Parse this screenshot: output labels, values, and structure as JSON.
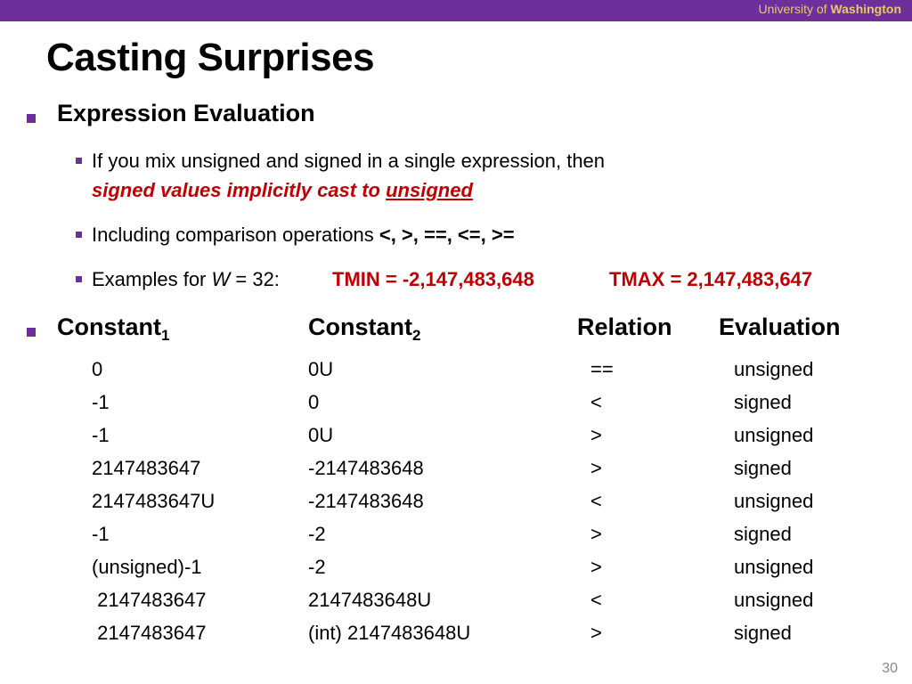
{
  "header": {
    "org_prefix": "University of",
    "org_name": "Washington"
  },
  "title": "Casting Surprises",
  "bullets": {
    "expr_eval": "Expression Evaluation",
    "mix_line1": "If you mix unsigned and signed in a single expression, then",
    "mix_line2_a": "signed values implicitly cast to ",
    "mix_line2_b": "unsigned",
    "comparison_a": "Including comparison operations ",
    "comparison_b": "<, >, ==, <=, >=",
    "examples_a": "Examples for ",
    "examples_w": "W",
    "examples_b": " = 32:",
    "tmin": "TMIN = -2,147,483,648",
    "tmax": "TMAX = 2,147,483,647"
  },
  "table": {
    "headers": {
      "c1": "Constant",
      "c1_sub": "1",
      "c2": "Constant",
      "c2_sub": "2",
      "relation": "Relation",
      "evaluation": "Evaluation"
    },
    "rows": [
      {
        "c1": "0",
        "c2": "0U",
        "rel": "==",
        "eval": "unsigned"
      },
      {
        "c1": "-1",
        "c2": "0",
        "rel": "<",
        "eval": "signed"
      },
      {
        "c1": "-1",
        "c2": "0U",
        "rel": ">",
        "eval": "unsigned"
      },
      {
        "c1": "2147483647",
        "c2": "-2147483648",
        "rel": ">",
        "eval": "signed"
      },
      {
        "c1": "2147483647U",
        "c2": "-2147483648",
        "rel": "<",
        "eval": "unsigned"
      },
      {
        "c1": "-1",
        "c2": "-2",
        "rel": ">",
        "eval": "signed"
      },
      {
        "c1": "(unsigned)-1",
        "c2": "-2",
        "rel": ">",
        "eval": "unsigned"
      },
      {
        "c1": " 2147483647",
        "c2": "2147483648U",
        "rel": "<",
        "eval": "unsigned"
      },
      {
        "c1": " 2147483647",
        "c2": "(int) 2147483648U",
        "rel": ">",
        "eval": "signed"
      }
    ]
  },
  "page_number": "30"
}
